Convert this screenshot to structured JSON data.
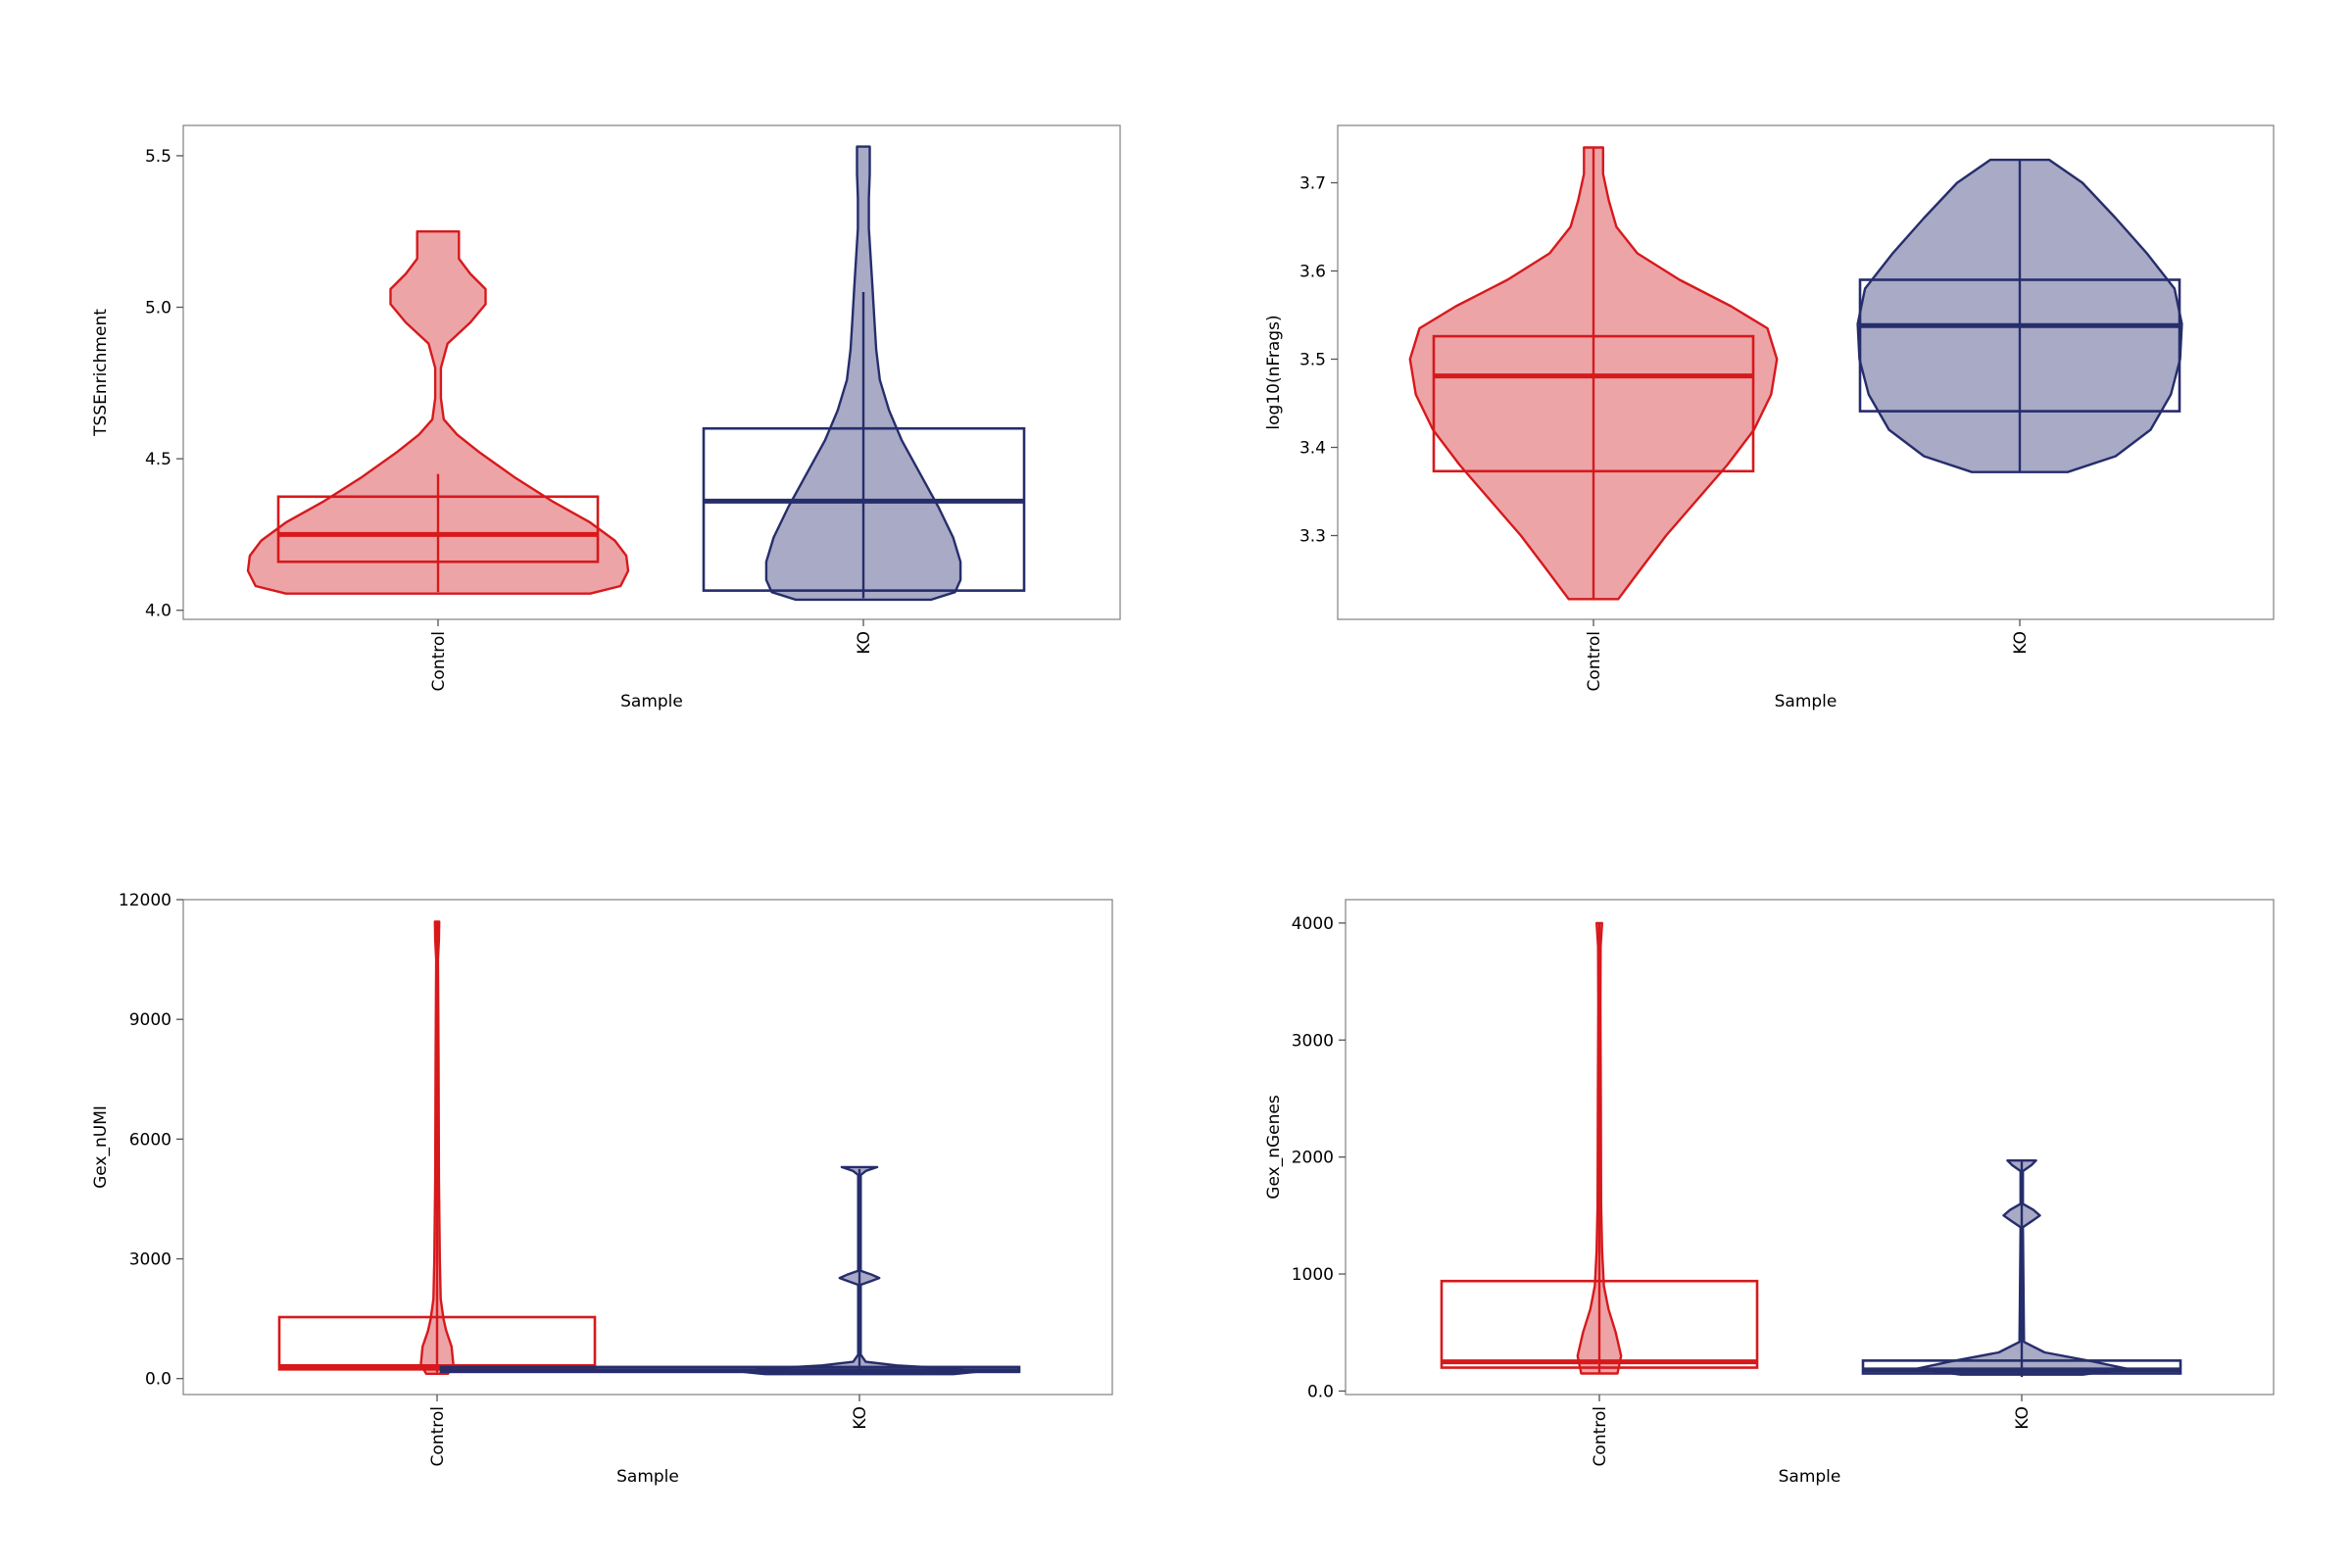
{
  "colors": {
    "control": "#d7191c",
    "control_fill": "#eda4a7",
    "ko": "#262d6b",
    "ko_fill": "#a8aac6",
    "frame": "#8a8a8a"
  },
  "chart_data": [
    {
      "type": "violin",
      "title": "",
      "xlabel": "Sample",
      "ylabel": "TSSEnrichment",
      "categories": [
        "Control",
        "KO"
      ],
      "ylim": [
        3.97,
        5.6
      ],
      "yticks": [
        4.0,
        4.5,
        5.0,
        5.5
      ],
      "series": [
        {
          "name": "Control",
          "box": {
            "q1": 4.16,
            "median": 4.25,
            "q3": 4.375,
            "whisker_low": 4.06,
            "whisker_high": 4.45
          },
          "violin": {
            "ymin": 4.055,
            "ymax": 5.25,
            "profile": [
              [
                4.055,
                0.8
              ],
              [
                4.08,
                0.96
              ],
              [
                4.13,
                1.0
              ],
              [
                4.18,
                0.99
              ],
              [
                4.23,
                0.93
              ],
              [
                4.29,
                0.8
              ],
              [
                4.36,
                0.6
              ],
              [
                4.44,
                0.4
              ],
              [
                4.52,
                0.22
              ],
              [
                4.58,
                0.1
              ],
              [
                4.63,
                0.03
              ],
              [
                4.7,
                0.015
              ],
              [
                4.8,
                0.015
              ],
              [
                4.88,
                0.05
              ],
              [
                4.95,
                0.17
              ],
              [
                5.01,
                0.25
              ],
              [
                5.06,
                0.25
              ],
              [
                5.11,
                0.17
              ],
              [
                5.16,
                0.11
              ],
              [
                5.2,
                0.11
              ],
              [
                5.25,
                0.11
              ]
            ]
          }
        },
        {
          "name": "KO",
          "box": {
            "q1": 4.065,
            "median": 4.36,
            "q3": 4.6,
            "whisker_low": 4.04,
            "whisker_high": 5.05
          },
          "violin": {
            "ymin": 4.035,
            "ymax": 5.53,
            "profile": [
              [
                4.035,
                0.37
              ],
              [
                4.06,
                0.5
              ],
              [
                4.1,
                0.53
              ],
              [
                4.16,
                0.53
              ],
              [
                4.24,
                0.49
              ],
              [
                4.34,
                0.41
              ],
              [
                4.45,
                0.31
              ],
              [
                4.56,
                0.21
              ],
              [
                4.66,
                0.14
              ],
              [
                4.76,
                0.09
              ],
              [
                4.86,
                0.07
              ],
              [
                4.96,
                0.06
              ],
              [
                5.06,
                0.05
              ],
              [
                5.16,
                0.04
              ],
              [
                5.26,
                0.03
              ],
              [
                5.36,
                0.03
              ],
              [
                5.44,
                0.035
              ],
              [
                5.53,
                0.035
              ]
            ]
          }
        }
      ]
    },
    {
      "type": "violin",
      "title": "",
      "xlabel": "Sample",
      "ylabel": "log10(nFrags)",
      "categories": [
        "Control",
        "KO"
      ],
      "ylim": [
        3.205,
        3.765
      ],
      "yticks": [
        3.3,
        3.4,
        3.5,
        3.6,
        3.7
      ],
      "series": [
        {
          "name": "Control",
          "box": {
            "q1": 3.373,
            "median": 3.481,
            "q3": 3.526,
            "whisker_low": 3.228,
            "whisker_high": 3.74
          },
          "violin": {
            "ymin": 3.228,
            "ymax": 3.74,
            "profile": [
              [
                3.228,
                0.13
              ],
              [
                3.26,
                0.24
              ],
              [
                3.3,
                0.38
              ],
              [
                3.34,
                0.54
              ],
              [
                3.38,
                0.7
              ],
              [
                3.42,
                0.84
              ],
              [
                3.46,
                0.93
              ],
              [
                3.5,
                0.96
              ],
              [
                3.535,
                0.91
              ],
              [
                3.56,
                0.72
              ],
              [
                3.59,
                0.45
              ],
              [
                3.62,
                0.23
              ],
              [
                3.65,
                0.12
              ],
              [
                3.68,
                0.08
              ],
              [
                3.71,
                0.05
              ],
              [
                3.74,
                0.05
              ]
            ]
          }
        },
        {
          "name": "KO",
          "box": {
            "q1": 3.441,
            "median": 3.538,
            "q3": 3.59,
            "whisker_low": 3.372,
            "whisker_high": 3.726
          },
          "violin": {
            "ymin": 3.372,
            "ymax": 3.726,
            "profile": [
              [
                3.372,
                0.26
              ],
              [
                3.39,
                0.52
              ],
              [
                3.42,
                0.71
              ],
              [
                3.46,
                0.82
              ],
              [
                3.5,
                0.87
              ],
              [
                3.54,
                0.88
              ],
              [
                3.58,
                0.84
              ],
              [
                3.62,
                0.69
              ],
              [
                3.66,
                0.52
              ],
              [
                3.7,
                0.34
              ],
              [
                3.726,
                0.16
              ]
            ]
          }
        }
      ]
    },
    {
      "type": "violin",
      "title": "",
      "xlabel": "Sample",
      "ylabel": "Gex_nUMI",
      "categories": [
        "Control",
        "KO"
      ],
      "ylim": [
        -400,
        12000
      ],
      "yticks": [
        0,
        3000,
        6000,
        9000,
        12000
      ],
      "series": [
        {
          "name": "Control",
          "box": {
            "q1": 230,
            "median": 300,
            "q3": 1540,
            "whisker_low": 150,
            "whisker_high": 11450
          },
          "violin": {
            "ymin": 120,
            "ymax": 11450,
            "profile": [
              [
                120,
                0.06
              ],
              [
                350,
                0.09
              ],
              [
                800,
                0.08
              ],
              [
                1200,
                0.05
              ],
              [
                1500,
                0.035
              ],
              [
                2000,
                0.02
              ],
              [
                3000,
                0.015
              ],
              [
                5000,
                0.01
              ],
              [
                8000,
                0.008
              ],
              [
                10500,
                0.005
              ],
              [
                11000,
                0.01
              ],
              [
                11450,
                0.012
              ]
            ]
          }
        },
        {
          "name": "KO",
          "box": {
            "q1": 170,
            "median": 200,
            "q3": 290,
            "whisker_low": 120,
            "whisker_high": 5250
          },
          "violin": {
            "ymin": 110,
            "ymax": 5300,
            "profile": [
              [
                110,
                0.45
              ],
              [
                170,
                0.56
              ],
              [
                240,
                0.48
              ],
              [
                330,
                0.18
              ],
              [
                420,
                0.03
              ],
              [
                600,
                0.006
              ],
              [
                2350,
                0.006
              ],
              [
                2450,
                0.06
              ],
              [
                2520,
                0.095
              ],
              [
                2600,
                0.06
              ],
              [
                2700,
                0.006
              ],
              [
                5100,
                0.006
              ],
              [
                5200,
                0.03
              ],
              [
                5300,
                0.085
              ]
            ]
          }
        }
      ]
    },
    {
      "type": "violin",
      "title": "",
      "xlabel": "Sample",
      "ylabel": "Gex_nGenes",
      "categories": [
        "Control",
        "KO"
      ],
      "ylim": [
        -30,
        4200
      ],
      "yticks": [
        0,
        1000,
        2000,
        3000,
        4000
      ],
      "series": [
        {
          "name": "Control",
          "box": {
            "q1": 200,
            "median": 250,
            "q3": 940,
            "whisker_low": 150,
            "whisker_high": 4000
          },
          "violin": {
            "ymin": 150,
            "ymax": 4000,
            "profile": [
              [
                150,
                0.1
              ],
              [
                300,
                0.12
              ],
              [
                500,
                0.09
              ],
              [
                700,
                0.05
              ],
              [
                900,
                0.025
              ],
              [
                1200,
                0.015
              ],
              [
                1600,
                0.01
              ],
              [
                2500,
                0.008
              ],
              [
                3300,
                0.006
              ],
              [
                3800,
                0.007
              ],
              [
                4000,
                0.015
              ]
            ]
          }
        },
        {
          "name": "KO",
          "box": {
            "q1": 150,
            "median": 180,
            "q3": 260,
            "whisker_low": 120,
            "whisker_high": 1960
          },
          "violin": {
            "ymin": 140,
            "ymax": 1970,
            "profile": [
              [
                140,
                0.32
              ],
              [
                190,
                0.55
              ],
              [
                250,
                0.38
              ],
              [
                330,
                0.12
              ],
              [
                420,
                0.012
              ],
              [
                1400,
                0.006
              ],
              [
                1460,
                0.06
              ],
              [
                1500,
                0.095
              ],
              [
                1550,
                0.06
              ],
              [
                1600,
                0.006
              ],
              [
                1880,
                0.006
              ],
              [
                1930,
                0.05
              ],
              [
                1970,
                0.075
              ]
            ]
          }
        }
      ]
    }
  ]
}
